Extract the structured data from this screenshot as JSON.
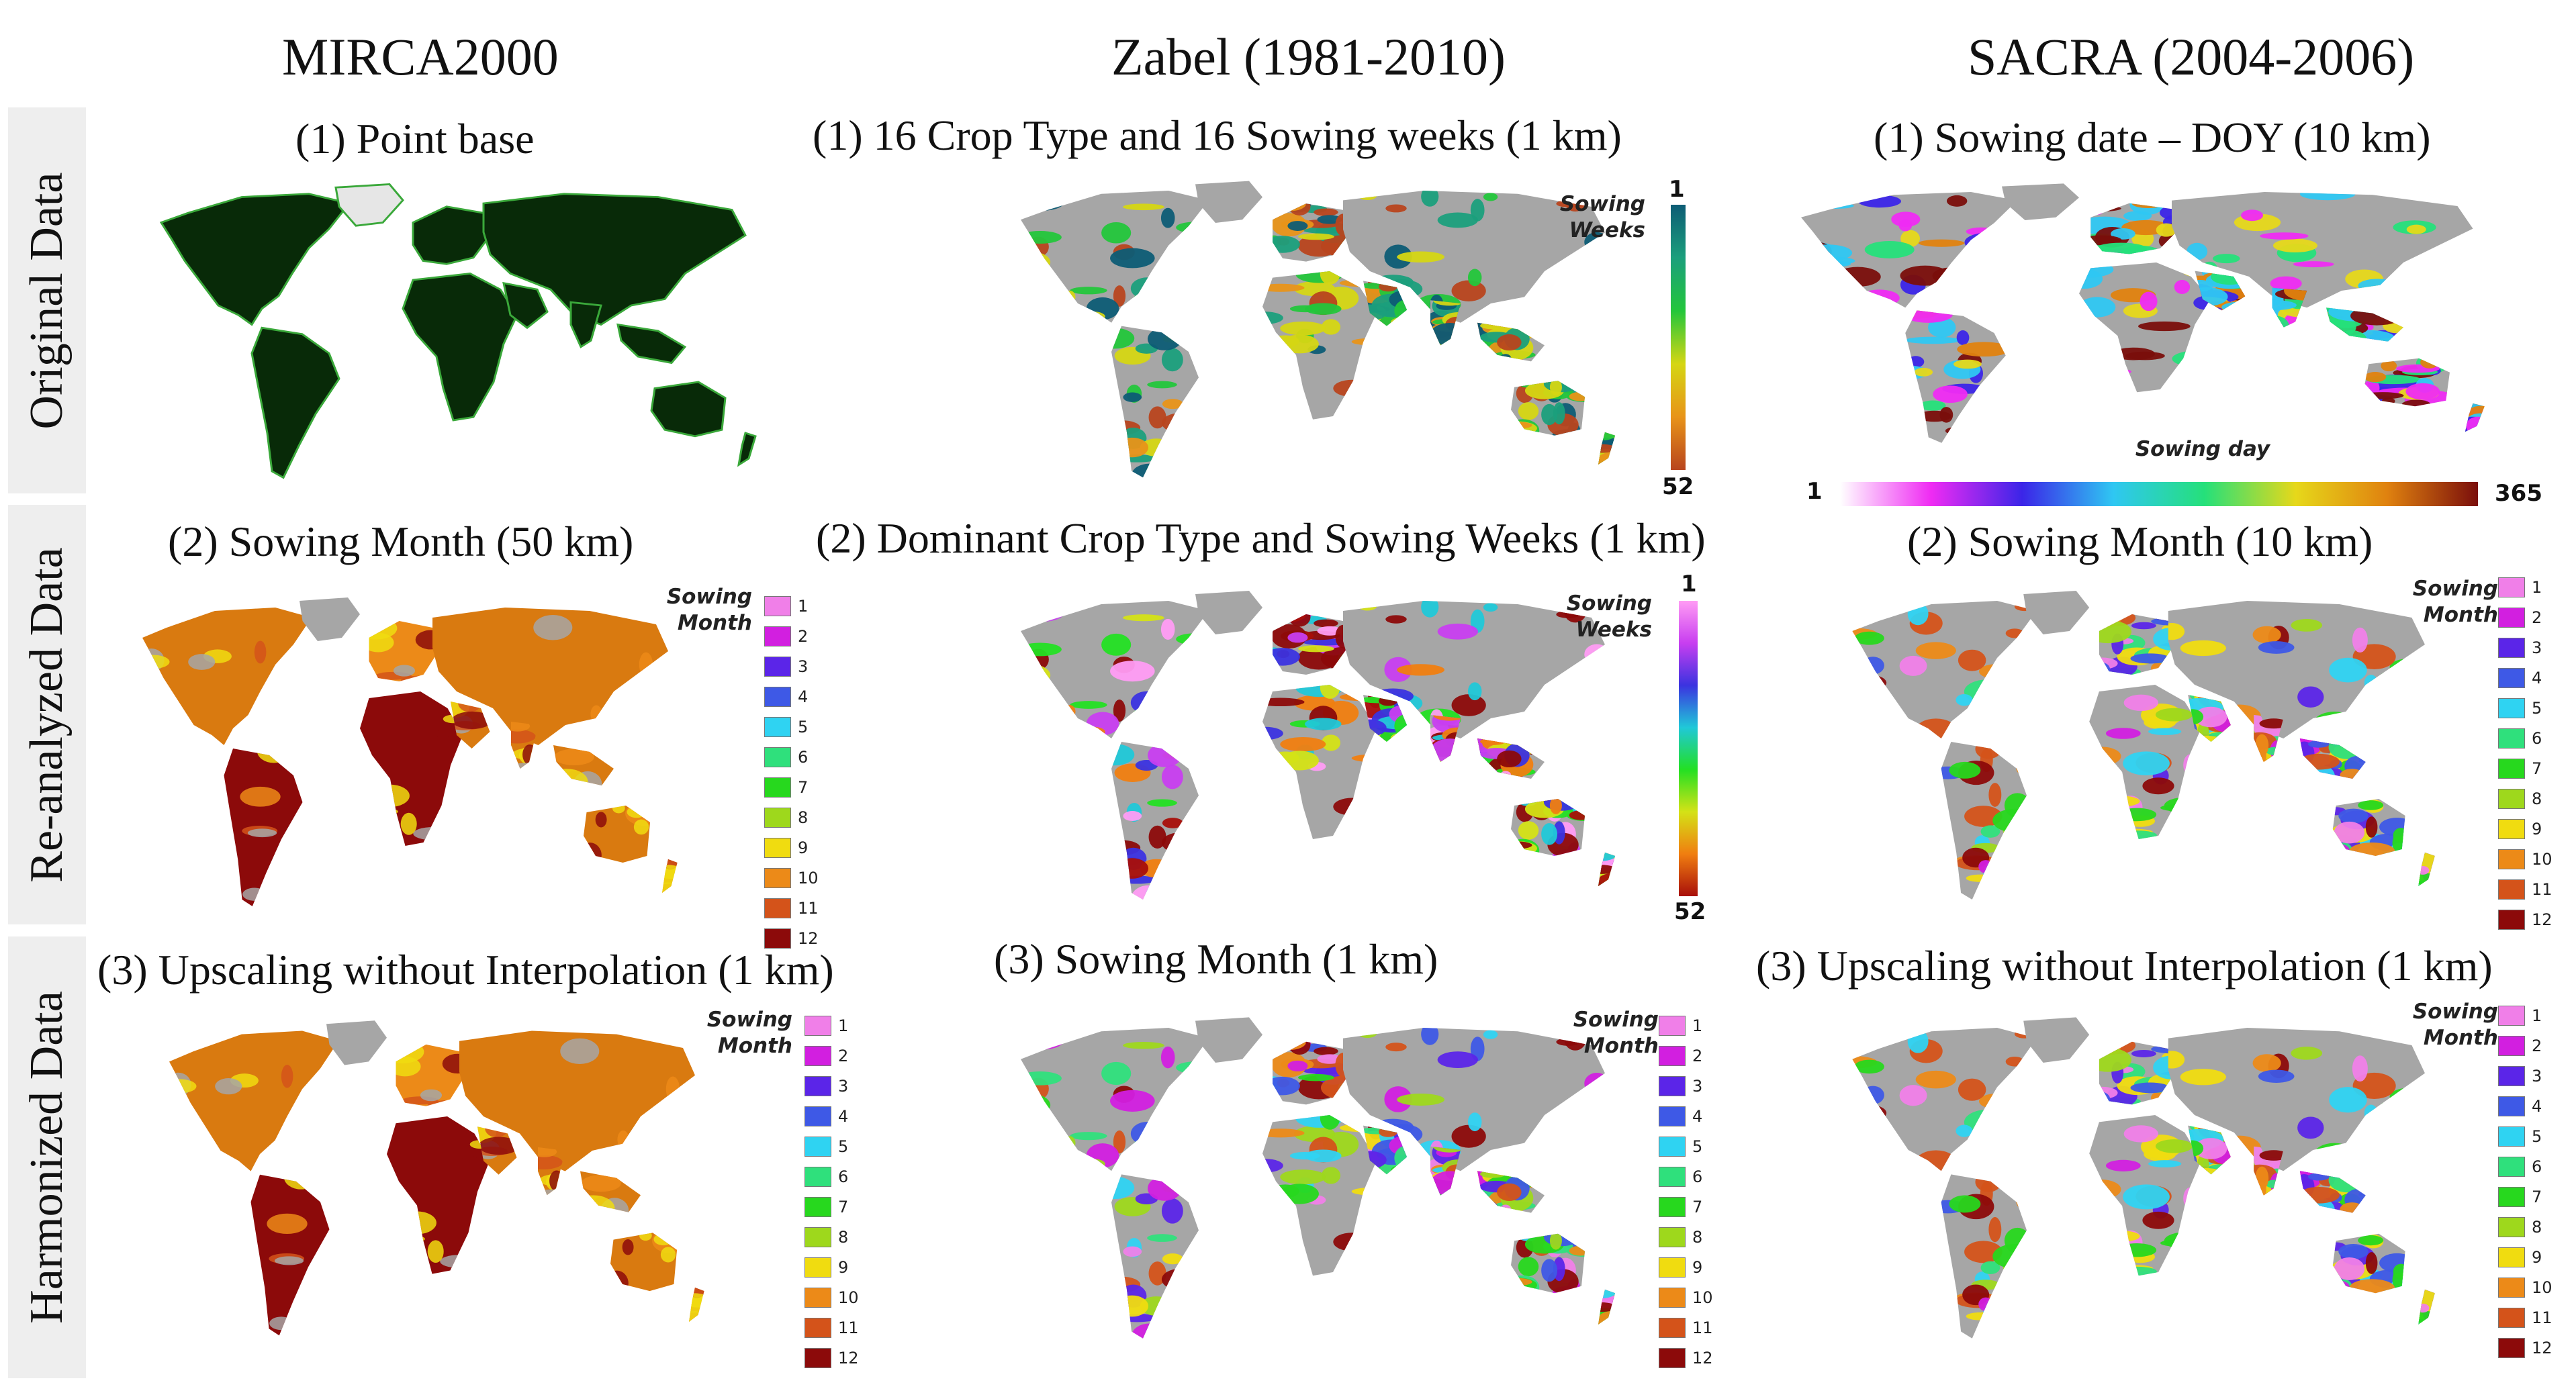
{
  "columns": [
    "MIRCA2000",
    "Zabel (1981-2010)",
    "SACRA (2004-2006)"
  ],
  "rows": [
    "Original Data",
    "Re-analyzed Data",
    "Harmonized  Data"
  ],
  "panels": {
    "mirca_1": "(1) Point base",
    "mirca_2": "(2) Sowing  Month (50 km)",
    "mirca_3": "(3) Upscaling  without  Interpolation  (1 km)",
    "zabel_1": "(1) 16 Crop Type and 16 Sowing  weeks (1 km)",
    "zabel_2": "(2) Dominant Crop Type and Sowing Weeks (1 km)",
    "zabel_3": "(3) Sowing  Month  (1 km)",
    "sacra_1": "(1) Sowing date – DOY (10 km)",
    "sacra_2": "(2) Sowing  Month (10 km)",
    "sacra_3": "(3) Upscaling  without  Interpolation  (1 km)"
  },
  "legends": {
    "sowing_weeks_title_1": "Sowing",
    "sowing_weeks_title_2": "Weeks",
    "sowing_month_title_1": "Sowing",
    "sowing_month_title_2": "Month",
    "sowing_day_title": "Sowing day",
    "weeks_min": "1",
    "weeks_max": "52",
    "day_min": "1",
    "day_max": "365",
    "months": [
      "1",
      "2",
      "3",
      "4",
      "5",
      "6",
      "7",
      "8",
      "9",
      "10",
      "11",
      "12"
    ],
    "month_colors": [
      "#f07fe8",
      "#d21fe0",
      "#5b25e8",
      "#3e59e6",
      "#2fd3f2",
      "#2fe07c",
      "#27d81e",
      "#9ed81c",
      "#f0dc10",
      "#ec8a18",
      "#d4531a",
      "#8c0a0a"
    ],
    "weeks_colors_zabel1": [
      "#0d5c75",
      "#1b9f7c",
      "#23c63b",
      "#d5d613",
      "#e89419",
      "#b8451e"
    ],
    "weeks_colors_zabel2": [
      "#ff9cf4",
      "#c83ef0",
      "#3b33e0",
      "#20c8d8",
      "#23e023",
      "#d4e216",
      "#f07e10",
      "#a80f0a"
    ],
    "day_colors": [
      "#ffffff",
      "#ef2bf3",
      "#3b25e8",
      "#2fc7f2",
      "#25e07a",
      "#e6d81a",
      "#e0820f",
      "#7a0e0b"
    ],
    "map_gray": "#a6a6a6",
    "map_light": "#e6e6e6",
    "mirca_point": "#082a08"
  }
}
